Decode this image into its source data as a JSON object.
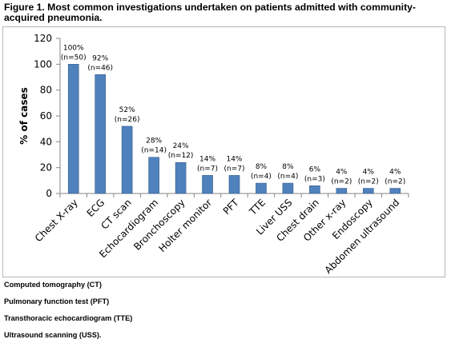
{
  "figure_title": "Figure 1. Most common investigations undertaken on patients admitted with community-acquired pneumonia.",
  "chart_data": {
    "type": "bar",
    "title": "",
    "xlabel": "",
    "ylabel": "% of cases",
    "ylim": [
      0,
      120
    ],
    "yticks": [
      "0",
      "20",
      "40",
      "60",
      "80",
      "100",
      "120"
    ],
    "grid": false,
    "bar_color": "#4f81bd",
    "categories": [
      "Chest X-ray",
      "ECG",
      "CT scan",
      "Echocardiogram",
      "Bronchoscopy",
      "Holter monitor",
      "PFT",
      "TTE",
      "Liver USS",
      "Chest drain",
      "Other x-ray",
      "Endoscopy",
      "Abdomen ultrasound"
    ],
    "values": [
      100,
      92,
      52,
      28,
      24,
      14,
      14,
      8,
      8,
      6,
      4,
      4,
      4
    ],
    "data_labels": [
      [
        "100%",
        "(n=50)"
      ],
      [
        "92%",
        "(n=46)"
      ],
      [
        "52%",
        "(n=26)"
      ],
      [
        "28%",
        "(n=14)"
      ],
      [
        "24%",
        "(n=12)"
      ],
      [
        "14%",
        "(n=7)"
      ],
      [
        "14%",
        "(n=7)"
      ],
      [
        "8%",
        "(n=4)"
      ],
      [
        "8%",
        "(n=4)"
      ],
      [
        "6%",
        "(n=3)"
      ],
      [
        "4%",
        "(n=2)"
      ],
      [
        "4%",
        "(n=2)"
      ],
      [
        "4%",
        "(n=2)"
      ]
    ]
  },
  "footnotes": [
    "Computed tomography (CT)",
    "Pulmonary function test (PFT)",
    "Transthoracic echocardiogram (TTE)",
    "Ultrasound scanning (USS)."
  ]
}
